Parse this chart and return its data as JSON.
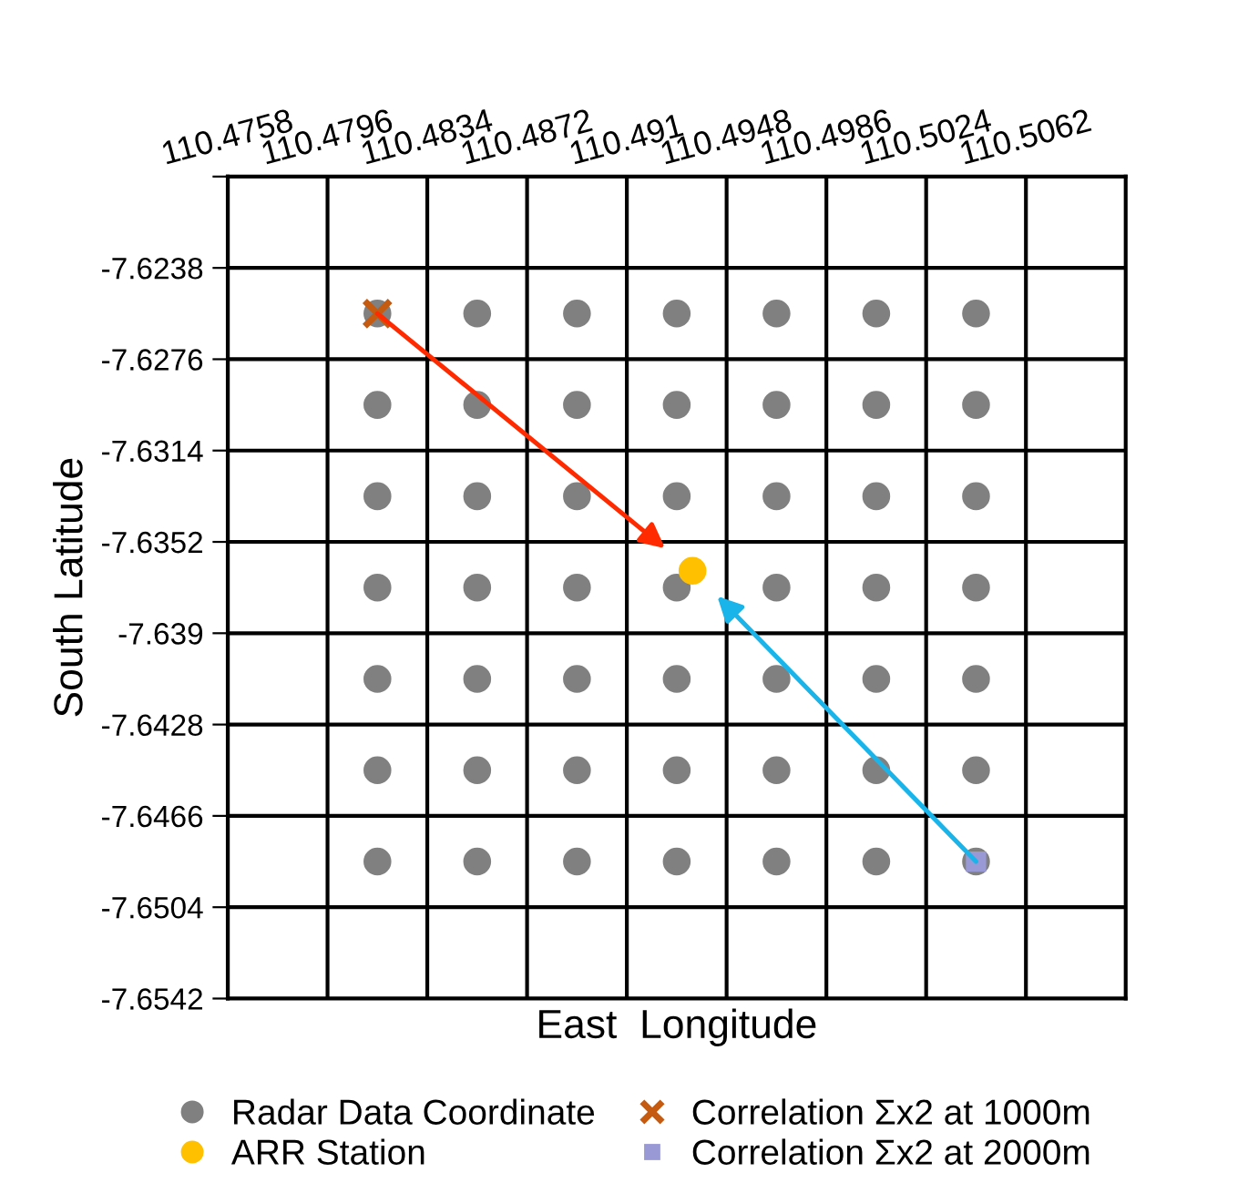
{
  "chart_data": {
    "type": "scatter",
    "xlabel": "East  Longitude",
    "ylabel": "South Latitude",
    "xlim": [
      110.4758,
      110.51
    ],
    "ylim": [
      -7.6542,
      -7.62
    ],
    "xticks": [
      110.4758,
      110.4796,
      110.4834,
      110.4872,
      110.491,
      110.4948,
      110.4986,
      110.5024,
      110.5062
    ],
    "yticks": [
      -7.6542,
      -7.6504,
      -7.6466,
      -7.6428,
      -7.639,
      -7.6352,
      -7.6314,
      -7.6276,
      -7.6238,
      {
        "value": -7.62,
        "label": null
      }
    ],
    "tick_labels": "xy",
    "grid": true,
    "legend": "bottom",
    "series": [
      {
        "name": "Radar Data Coordinate",
        "color": "#808080",
        "marker": "circle",
        "x": [
          110.4815,
          110.4853,
          110.4891,
          110.4929,
          110.4967,
          110.5005,
          110.5043,
          110.4815,
          110.4853,
          110.4891,
          110.4929,
          110.4967,
          110.5005,
          110.5043,
          110.4815,
          110.4853,
          110.4891,
          110.4929,
          110.4967,
          110.5005,
          110.5043,
          110.4815,
          110.4853,
          110.4891,
          110.4929,
          110.4967,
          110.5005,
          110.5043,
          110.4815,
          110.4853,
          110.4891,
          110.4929,
          110.4967,
          110.5005,
          110.5043,
          110.4815,
          110.4853,
          110.4891,
          110.4929,
          110.4967,
          110.5005,
          110.5043,
          110.4815,
          110.4853,
          110.4891,
          110.4929,
          110.4967,
          110.5005,
          110.5043
        ],
        "values": [
          -7.6257,
          -7.6257,
          -7.6257,
          -7.6257,
          -7.6257,
          -7.6257,
          -7.6257,
          -7.6295,
          -7.6295,
          -7.6295,
          -7.6295,
          -7.6295,
          -7.6295,
          -7.6295,
          -7.6333,
          -7.6333,
          -7.6333,
          -7.6333,
          -7.6333,
          -7.6333,
          -7.6333,
          -7.6371,
          -7.6371,
          -7.6371,
          -7.6371,
          -7.6371,
          -7.6371,
          -7.6371,
          -7.6409,
          -7.6409,
          -7.6409,
          -7.6409,
          -7.6409,
          -7.6409,
          -7.6409,
          -7.6447,
          -7.6447,
          -7.6447,
          -7.6447,
          -7.6447,
          -7.6447,
          -7.6447,
          -7.6485,
          -7.6485,
          -7.6485,
          -7.6485,
          -7.6485,
          -7.6485,
          -7.6485
        ]
      },
      {
        "name": "ARR Station",
        "color": "#ffc000",
        "marker": "circle",
        "x": [
          110.4935
        ],
        "values": [
          -7.6364
        ]
      },
      {
        "name": "Correlation Σx2 at 1000m",
        "color": "#c55a11",
        "marker": "cross",
        "x": [
          110.4815
        ],
        "values": [
          -7.6257
        ]
      },
      {
        "name": "Correlation Σx2 at 2000m",
        "color": "#9999d6",
        "marker": "square",
        "x": [
          110.5043
        ],
        "values": [
          -7.6485
        ]
      }
    ]
  }
}
